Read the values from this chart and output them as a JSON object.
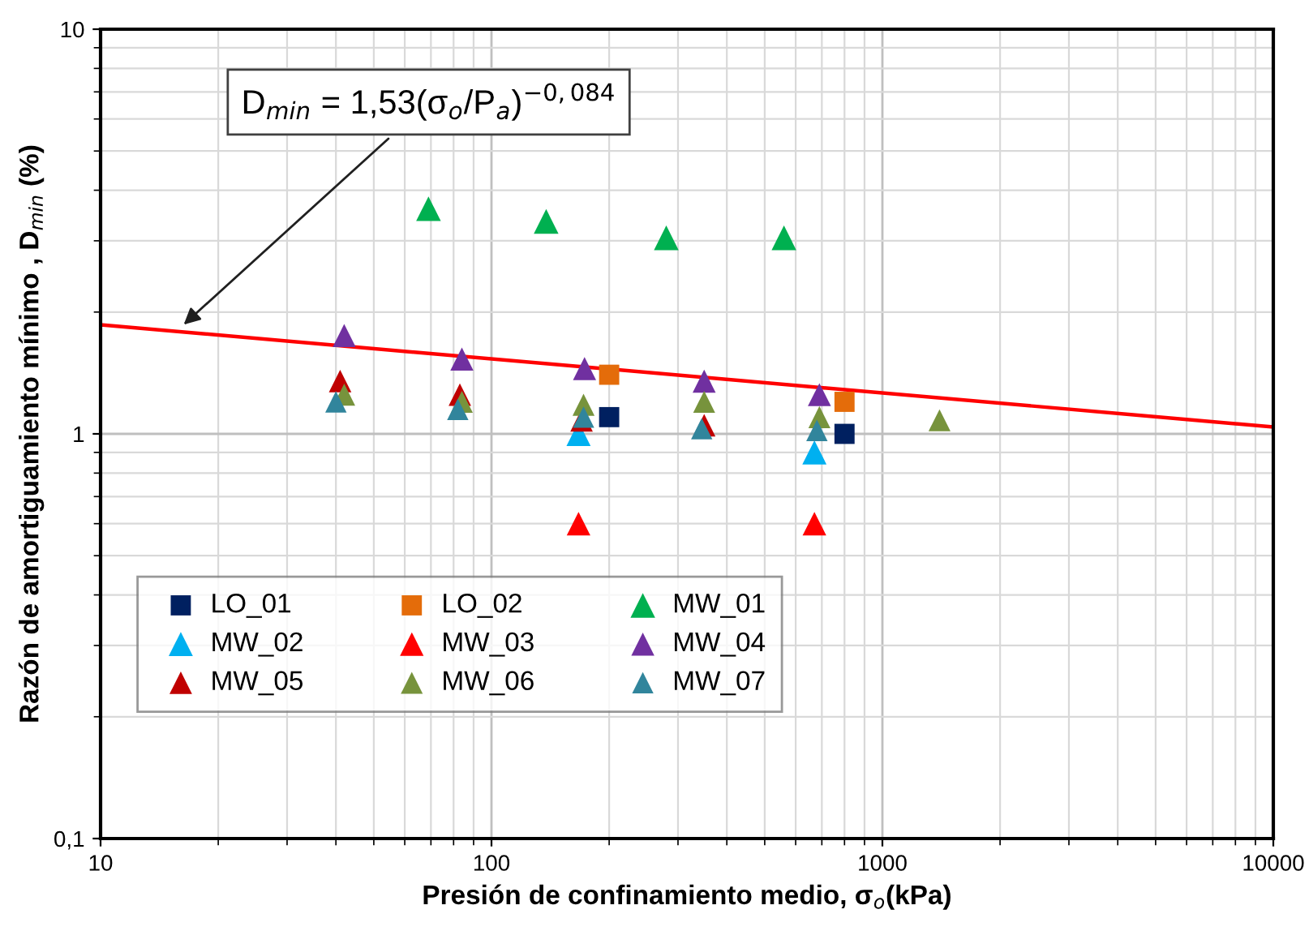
{
  "chart_data": {
    "type": "scatter",
    "xlabel": "Presión de confinamiento medio, σ$_{o}$(kPa)",
    "ylabel": "Razón de amortiguamiento mínimo , D$_{min}$ (%)",
    "log": "xy",
    "xlim": [
      10,
      10000
    ],
    "ylim": [
      0.1,
      10
    ],
    "xticks": [
      10,
      100,
      1000,
      10000
    ],
    "yticks": [
      {
        "value": 0.1,
        "label": "0,1"
      },
      1,
      10
    ],
    "grid": true,
    "legend": "bottom left",
    "marker": "triangle",
    "annotations": [
      {
        "text": "D$_{min}$ = 1,53(σ$_{o}$/P$_{a}$)$^{−0,084}$",
        "x": 16,
        "y": 1.83
      }
    ],
    "series": [
      {
        "name": "LO_01",
        "color": "#002060",
        "marker": "square",
        "x": [
          200,
          800
        ],
        "values": [
          1.1,
          1.0
        ]
      },
      {
        "name": "LO_02",
        "color": "#e46c0a",
        "marker": "square",
        "x": [
          200,
          800
        ],
        "values": [
          1.4,
          1.2
        ]
      },
      {
        "name": "MW_01",
        "color": "#00b050",
        "x": [
          69,
          138,
          280,
          560
        ],
        "values": [
          3.6,
          3.35,
          3.05,
          3.05
        ]
      },
      {
        "name": "MW_02",
        "color": "#00b0f0",
        "x": [
          167,
          670
        ],
        "values": [
          1.0,
          0.9
        ]
      },
      {
        "name": "MW_03",
        "color": "#ff0000",
        "x": [
          167,
          670
        ],
        "values": [
          0.6,
          0.6
        ]
      },
      {
        "name": "MW_04",
        "color": "#7030a0",
        "x": [
          42,
          84,
          173,
          350,
          690
        ],
        "values": [
          1.75,
          1.53,
          1.45,
          1.35,
          1.25
        ]
      },
      {
        "name": "MW_05",
        "color": "#c00000",
        "x": [
          41,
          83,
          170,
          350
        ],
        "values": [
          1.35,
          1.25,
          1.08,
          1.05
        ]
      },
      {
        "name": "MW_06",
        "color": "#77933c",
        "x": [
          42,
          84,
          172,
          350,
          690,
          1400
        ],
        "values": [
          1.25,
          1.2,
          1.18,
          1.2,
          1.1,
          1.08
        ]
      },
      {
        "name": "MW_07",
        "color": "#31859c",
        "x": [
          40,
          82,
          172,
          345,
          680
        ],
        "values": [
          1.2,
          1.15,
          1.1,
          1.03,
          1.02
        ]
      },
      {
        "type": "line",
        "color": "#ff0000",
        "marker": "none",
        "x": [
          10,
          10000
        ],
        "values": [
          1.86,
          1.04
        ]
      }
    ]
  }
}
